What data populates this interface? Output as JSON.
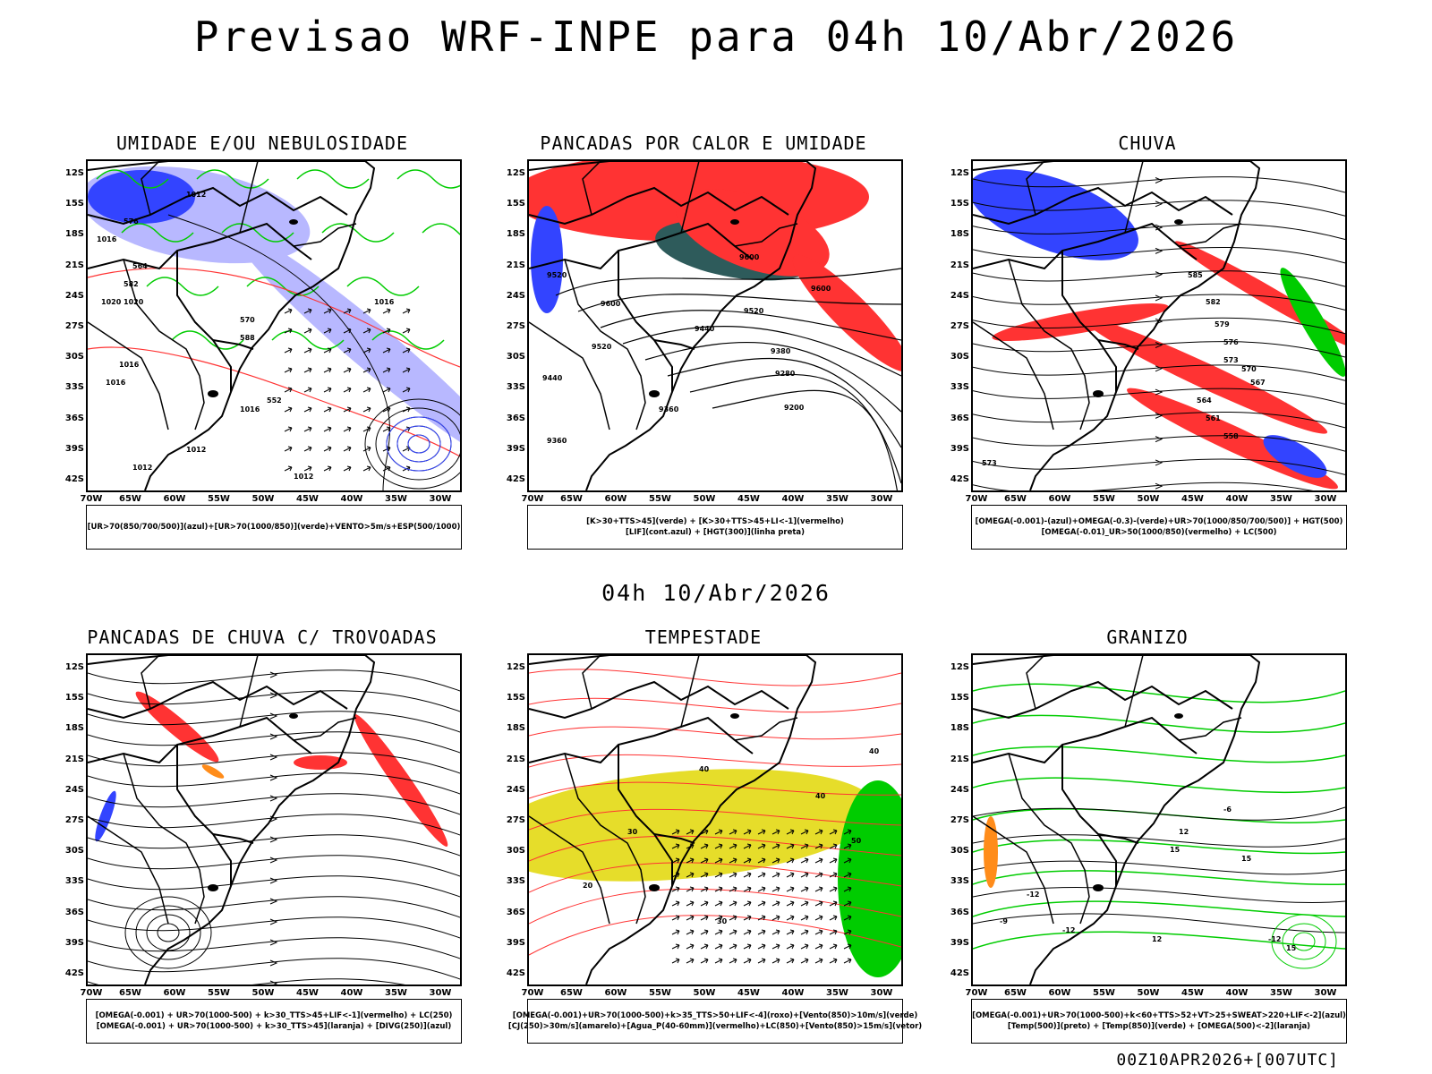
{
  "header": {
    "title": "Previsao WRF-INPE  para 04h 10/Abr/2026",
    "mid_title": "04h 10/Abr/2026",
    "footer_stamp": "00Z10APR2026+[007UTC]"
  },
  "axes": {
    "lat_labels": [
      "12S",
      "15S",
      "18S",
      "21S",
      "24S",
      "27S",
      "30S",
      "33S",
      "36S",
      "39S",
      "42S"
    ],
    "lon_labels": [
      "70W",
      "65W",
      "60W",
      "55W",
      "50W",
      "45W",
      "40W",
      "35W",
      "30W"
    ]
  },
  "colors": {
    "blue": "#3344ff",
    "lavender": "#b8b8ff",
    "green": "#00cc00",
    "red": "#ff3333",
    "dark_teal": "#2e5b5b",
    "yellow": "#e6dd2a",
    "orange": "#ff8c1a"
  },
  "panels": [
    {
      "title": "UMIDADE E/OU NEBULOSIDADE",
      "legend": [
        "[UR>70(850/700/500)](azul)+[UR>70(1000/850)](verde)+VENTO>5m/s+ESP(500/1000)"
      ],
      "contour_labels": [
        "1012",
        "1016",
        "1020",
        "1016",
        "1012",
        "1012",
        "1016",
        "1016",
        "1016",
        "1012",
        "1020",
        "576",
        "582",
        "588",
        "570",
        "564",
        "552"
      ]
    },
    {
      "title": "PANCADAS POR CALOR E UMIDADE",
      "legend": [
        "[K>30+TTS>45](verde) + [K>30+TTS>45+LI<-1](vermelho)",
        "[LIF](cont.azul) + [HGT(300)](linha preta)"
      ],
      "contour_labels": [
        "9600",
        "9600",
        "9600",
        "9520",
        "9440",
        "9520",
        "9380",
        "9280",
        "9200",
        "9360",
        "9440",
        "9520",
        "9360"
      ]
    },
    {
      "title": "CHUVA",
      "legend": [
        "[OMEGA(-0.001)-(azul)+OMEGA(-0.3)-(verde)+UR>70(1000/850/700/500)] + HGT(500)",
        "[OMEGA(-0.01)_UR>50(1000/850)(vermelho) + LC(500)"
      ],
      "contour_labels": [
        "585",
        "582",
        "579",
        "576",
        "573",
        "570",
        "567",
        "564",
        "561",
        "558",
        "573"
      ]
    },
    {
      "title": "PANCADAS DE CHUVA C/ TROVOADAS",
      "legend": [
        "[OMEGA(-0.001) + UR>70(1000-500) + k>30_TTS>45+LIF<-1](vermelho) + LC(250)",
        "[OMEGA(-0.001) + UR>70(1000-500) + k>30_TTS>45](laranja) + [DIVG(250)](azul)"
      ],
      "contour_labels": []
    },
    {
      "title": "TEMPESTADE",
      "legend": [
        "[OMEGA(-0.001)+UR>70(1000-500)+k>35_TTS>50+LIF<-4](roxo)+[Vento(850)>10m/s](verde)",
        "[CJ(250)>30m/s](amarelo)+[Agua_P(40-60mm)](vermelho)+LC(850)+[Vento(850)>15m/s](vetor)"
      ],
      "contour_labels": [
        "40",
        "40",
        "40",
        "50",
        "30",
        "20",
        "30"
      ]
    },
    {
      "title": "GRANIZO",
      "legend": [
        "[OMEGA(-0.001)+UR>70(1000-500)+k<60+TTS>52+VT>25+SWEAT>220+LIF<-2](azul)",
        "[Temp(500)](preto) + [Temp(850)](verde) + [OMEGA(500)<-2](laranja)"
      ],
      "contour_labels": [
        "-9",
        "-12",
        "-12",
        "-12",
        "-6",
        "12",
        "15",
        "15",
        "15",
        "12"
      ]
    }
  ]
}
